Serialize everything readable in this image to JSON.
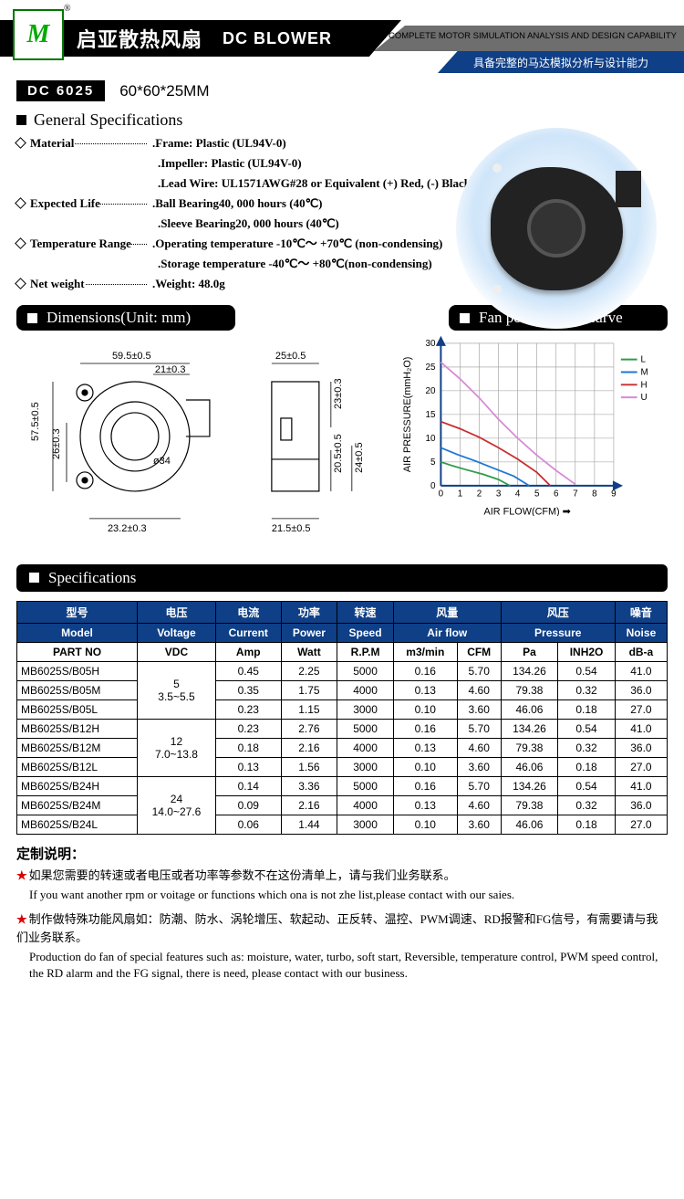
{
  "header": {
    "logo": "M",
    "brand_cn": "启亚散热风扇",
    "brand_en": "DC BLOWER",
    "cap_en": "HAVE COMPLETE MOTOR SIMULATION ANALYSIS AND DESIGN CAPABILITY",
    "cap_cn": "具备完整的马达模拟分析与设计能力"
  },
  "model": {
    "badge": "DC 6025",
    "dim": "60*60*25MM"
  },
  "sections": {
    "general": "General Specifications",
    "dimensions": "Dimensions(Unit: mm)",
    "curve": "Fan performance curve",
    "specs": "Specifications"
  },
  "general": {
    "material_label": "Material",
    "material_frame": ".Frame: Plastic (UL94V-0)",
    "material_impeller": ".Impeller: Plastic (UL94V-0)",
    "material_lead": ".Lead Wire: UL1571AWG#28 or Equivalent (+) Red, (-) Black",
    "life_label": "Expected Life",
    "life_ball": ".Ball Bearing40, 000 hours (40℃)",
    "life_sleeve": ".Sleeve Bearing20, 000 hours (40℃)",
    "temp_label": "Temperature Range",
    "temp_op": ".Operating temperature -10℃～ +70℃ (non-condensing)",
    "temp_st": ".Storage temperature -40℃～ +80℃(non-condensing)",
    "weight_label": "Net weight",
    "weight_val": ".Weight: 48.0g"
  },
  "dimensions": {
    "w": "59.5±0.5",
    "w2": "21±0.3",
    "t": "25±0.5",
    "h": "57.5±0.5",
    "h2": "26±0.3",
    "sh1": "23±0.3",
    "sh2": "20.5±0.5",
    "sh3": "24±0.5",
    "bw": "23.2±0.3",
    "bw2": "21.5±0.5",
    "dia": "ø34"
  },
  "chart": {
    "xlabel": "AIR FLOW(CFM)",
    "ylabel": "AIR PRESSURE(mmH₂O)",
    "xmax": 9,
    "ymax": 30,
    "ytick": 5,
    "xtick": 1,
    "bg": "#ffffff",
    "grid": "#999",
    "series": [
      {
        "name": "L",
        "color": "#2e9c4b",
        "pts": [
          [
            0,
            5
          ],
          [
            0.6,
            4.2
          ],
          [
            1.2,
            3.5
          ],
          [
            2.2,
            2.4
          ],
          [
            3.0,
            1.3
          ],
          [
            3.6,
            0
          ]
        ]
      },
      {
        "name": "M",
        "color": "#1f77d4",
        "pts": [
          [
            0,
            8
          ],
          [
            0.9,
            6.5
          ],
          [
            1.8,
            5.2
          ],
          [
            2.8,
            3.6
          ],
          [
            3.8,
            2.0
          ],
          [
            4.6,
            0
          ]
        ]
      },
      {
        "name": "H",
        "color": "#c92d2d",
        "pts": [
          [
            0,
            13.5
          ],
          [
            1,
            12
          ],
          [
            2,
            10.2
          ],
          [
            3,
            8
          ],
          [
            4,
            5.6
          ],
          [
            5,
            2.8
          ],
          [
            5.7,
            0
          ]
        ]
      },
      {
        "name": "U",
        "color": "#d88ad6",
        "pts": [
          [
            0,
            26
          ],
          [
            1,
            22.5
          ],
          [
            2,
            18.5
          ],
          [
            3,
            14
          ],
          [
            4,
            10
          ],
          [
            5,
            6.4
          ],
          [
            6,
            3.2
          ],
          [
            7,
            0.3
          ]
        ]
      }
    ]
  },
  "table": {
    "head_zh": [
      "型号",
      "电压",
      "电流",
      "功率",
      "转速",
      "风量",
      "风压",
      "噪音"
    ],
    "head_en": [
      "Model",
      "Voltage",
      "Current",
      "Power",
      "Speed",
      "Air flow",
      "Pressure",
      "Noise"
    ],
    "unit": [
      "PART NO",
      "VDC",
      "Amp",
      "Watt",
      "R.P.M",
      "m3/min",
      "CFM",
      "Pa",
      "INH2O",
      "dB-a"
    ],
    "groups": [
      {
        "v": "5",
        "vr": "3.5~5.5",
        "rows": [
          {
            "pn": "MB6025S/B05H",
            "a": "0.45",
            "w": "2.25",
            "rpm": "5000",
            "m3": "0.16",
            "cfm": "5.70",
            "pa": "134.26",
            "inh": "0.54",
            "db": "41.0"
          },
          {
            "pn": "MB6025S/B05M",
            "a": "0.35",
            "w": "1.75",
            "rpm": "4000",
            "m3": "0.13",
            "cfm": "4.60",
            "pa": "79.38",
            "inh": "0.32",
            "db": "36.0"
          },
          {
            "pn": "MB6025S/B05L",
            "a": "0.23",
            "w": "1.15",
            "rpm": "3000",
            "m3": "0.10",
            "cfm": "3.60",
            "pa": "46.06",
            "inh": "0.18",
            "db": "27.0"
          }
        ]
      },
      {
        "v": "12",
        "vr": "7.0~13.8",
        "rows": [
          {
            "pn": "MB6025S/B12H",
            "a": "0.23",
            "w": "2.76",
            "rpm": "5000",
            "m3": "0.16",
            "cfm": "5.70",
            "pa": "134.26",
            "inh": "0.54",
            "db": "41.0"
          },
          {
            "pn": "MB6025S/B12M",
            "a": "0.18",
            "w": "2.16",
            "rpm": "4000",
            "m3": "0.13",
            "cfm": "4.60",
            "pa": "79.38",
            "inh": "0.32",
            "db": "36.0"
          },
          {
            "pn": "MB6025S/B12L",
            "a": "0.13",
            "w": "1.56",
            "rpm": "3000",
            "m3": "0.10",
            "cfm": "3.60",
            "pa": "46.06",
            "inh": "0.18",
            "db": "27.0"
          }
        ]
      },
      {
        "v": "24",
        "vr": "14.0~27.6",
        "rows": [
          {
            "pn": "MB6025S/B24H",
            "a": "0.14",
            "w": "3.36",
            "rpm": "5000",
            "m3": "0.16",
            "cfm": "5.70",
            "pa": "134.26",
            "inh": "0.54",
            "db": "41.0"
          },
          {
            "pn": "MB6025S/B24M",
            "a": "0.09",
            "w": "2.16",
            "rpm": "4000",
            "m3": "0.13",
            "cfm": "4.60",
            "pa": "79.38",
            "inh": "0.32",
            "db": "36.0"
          },
          {
            "pn": "MB6025S/B24L",
            "a": "0.06",
            "w": "1.44",
            "rpm": "3000",
            "m3": "0.10",
            "cfm": "3.60",
            "pa": "46.06",
            "inh": "0.18",
            "db": "27.0"
          }
        ]
      }
    ]
  },
  "notes": {
    "title": "定制说明：",
    "n1_cn": "如果您需要的转速或者电压或者功率等参数不在这份清单上，请与我们业务联系。",
    "n1_en": "If you want another rpm or voitage or functions which ona is not zhe list,please contact with our saies.",
    "n2_cn": "制作做特殊功能风扇如：防潮、防水、涡轮增压、软起动、正反转、温控、PWM调速、RD报警和FG信号，有需要请与我们业务联系。",
    "n2_en": "Production do fan of special features such as: moisture, water, turbo, soft start, Reversible, temperature control, PWM speed control, the RD alarm and the FG signal, there is need, please contact with our business."
  }
}
